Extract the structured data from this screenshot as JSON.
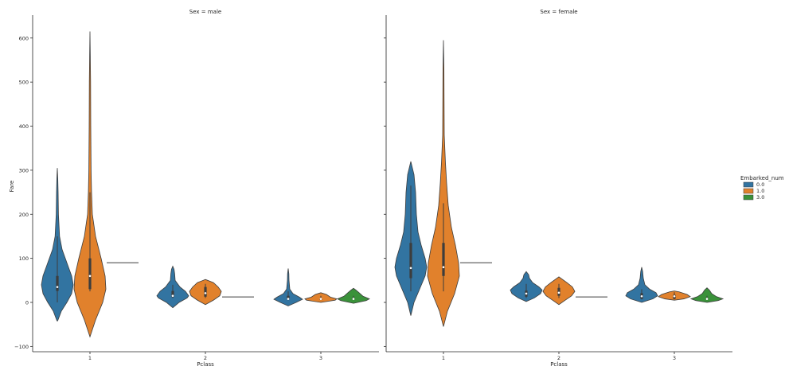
{
  "chart_data": [
    {
      "type": "violin",
      "title": "Sex = male",
      "xlabel": "Pclass",
      "ylabel": "Fare",
      "ylim": [
        -110,
        650
      ],
      "categories": [
        "1",
        "2",
        "3"
      ],
      "yticks": [
        "−100",
        "0",
        "100",
        "200",
        "300",
        "400",
        "500",
        "600"
      ],
      "violins": [
        {
          "pclass": "1",
          "embarked": "0.0",
          "profile": [
            [
              -42,
              0.02
            ],
            [
              -20,
              0.25
            ],
            [
              0,
              0.6
            ],
            [
              20,
              0.9
            ],
            [
              40,
              1.0
            ],
            [
              60,
              0.9
            ],
            [
              80,
              0.7
            ],
            [
              100,
              0.5
            ],
            [
              120,
              0.3
            ],
            [
              150,
              0.14
            ],
            [
              200,
              0.07
            ],
            [
              250,
              0.05
            ],
            [
              280,
              0.03
            ],
            [
              305,
              0.0
            ]
          ],
          "q1": 26,
          "median": 35,
          "q3": 60,
          "wlow": 0,
          "whigh": 150
        },
        {
          "pclass": "1",
          "embarked": "1.0",
          "profile": [
            [
              -78,
              0.0
            ],
            [
              -40,
              0.35
            ],
            [
              0,
              0.8
            ],
            [
              30,
              1.0
            ],
            [
              60,
              0.95
            ],
            [
              100,
              0.7
            ],
            [
              150,
              0.35
            ],
            [
              200,
              0.15
            ],
            [
              250,
              0.1
            ],
            [
              300,
              0.07
            ],
            [
              400,
              0.05
            ],
            [
              500,
              0.04
            ],
            [
              560,
              0.02
            ],
            [
              615,
              0.0
            ]
          ],
          "q1": 30,
          "median": 60,
          "q3": 100,
          "wlow": 25,
          "whigh": 250
        },
        {
          "pclass": "1",
          "embarked": "3.0",
          "flat": 90
        },
        {
          "pclass": "2",
          "embarked": "0.0",
          "profile": [
            [
              -12,
              0.0
            ],
            [
              0,
              0.4
            ],
            [
              10,
              0.9
            ],
            [
              15,
              1.0
            ],
            [
              25,
              0.8
            ],
            [
              35,
              0.45
            ],
            [
              50,
              0.15
            ],
            [
              65,
              0.12
            ],
            [
              75,
              0.08
            ],
            [
              82,
              0.0
            ]
          ],
          "q1": 12,
          "median": 15,
          "q3": 26,
          "wlow": 10,
          "whigh": 40
        },
        {
          "pclass": "2",
          "embarked": "1.0",
          "profile": [
            [
              -5,
              0.0
            ],
            [
              5,
              0.5
            ],
            [
              15,
              0.9
            ],
            [
              25,
              1.0
            ],
            [
              35,
              0.8
            ],
            [
              45,
              0.5
            ],
            [
              52,
              0.0
            ]
          ],
          "q1": 13,
          "median": 21,
          "q3": 35,
          "wlow": 10,
          "whigh": 42
        },
        {
          "pclass": "2",
          "embarked": "3.0",
          "flat": 12.4
        },
        {
          "pclass": "3",
          "embarked": "0.0",
          "profile": [
            [
              -8,
              0.0
            ],
            [
              0,
              0.5
            ],
            [
              7,
              0.9
            ],
            [
              12,
              0.7
            ],
            [
              20,
              0.3
            ],
            [
              30,
              0.1
            ],
            [
              50,
              0.05
            ],
            [
              65,
              0.04
            ],
            [
              77,
              0.0
            ]
          ],
          "q1": 7,
          "median": 8,
          "q3": 15,
          "wlow": 5,
          "whigh": 25
        },
        {
          "pclass": "3",
          "embarked": "1.0",
          "profile": [
            [
              0,
              0.0
            ],
            [
              5,
              0.9
            ],
            [
              8,
              1.0
            ],
            [
              12,
              0.6
            ],
            [
              18,
              0.35
            ],
            [
              22,
              0.0
            ]
          ],
          "q1": 7,
          "median": 7.8,
          "q3": 8,
          "wlow": 6,
          "whigh": 15
        },
        {
          "pclass": "3",
          "embarked": "3.0",
          "profile": [
            [
              -2,
              0.0
            ],
            [
              4,
              0.8
            ],
            [
              8,
              1.0
            ],
            [
              14,
              0.6
            ],
            [
              22,
              0.35
            ],
            [
              28,
              0.15
            ],
            [
              32,
              0.0
            ]
          ],
          "q1": 7.7,
          "median": 8,
          "q3": 10,
          "wlow": 7,
          "whigh": 15
        }
      ]
    },
    {
      "type": "violin",
      "title": "Sex = female",
      "xlabel": "Pclass",
      "ylabel": "",
      "ylim": [
        -110,
        650
      ],
      "categories": [
        "1",
        "2",
        "3"
      ],
      "violins": [
        {
          "pclass": "1",
          "embarked": "0.0",
          "profile": [
            [
              -30,
              0.0
            ],
            [
              0,
              0.2
            ],
            [
              30,
              0.55
            ],
            [
              60,
              0.9
            ],
            [
              80,
              1.0
            ],
            [
              100,
              0.9
            ],
            [
              130,
              0.65
            ],
            [
              160,
              0.45
            ],
            [
              200,
              0.35
            ],
            [
              250,
              0.3
            ],
            [
              290,
              0.2
            ],
            [
              320,
              0.0
            ]
          ],
          "q1": 55,
          "median": 78,
          "q3": 135,
          "wlow": 25,
          "whigh": 265
        },
        {
          "pclass": "1",
          "embarked": "1.0",
          "profile": [
            [
              -55,
              0.0
            ],
            [
              -20,
              0.25
            ],
            [
              20,
              0.7
            ],
            [
              60,
              1.0
            ],
            [
              90,
              0.95
            ],
            [
              130,
              0.75
            ],
            [
              170,
              0.5
            ],
            [
              220,
              0.3
            ],
            [
              270,
              0.2
            ],
            [
              320,
              0.12
            ],
            [
              380,
              0.05
            ],
            [
              450,
              0.04
            ],
            [
              530,
              0.03
            ],
            [
              595,
              0.0
            ]
          ],
          "q1": 60,
          "median": 80,
          "q3": 135,
          "wlow": 25,
          "whigh": 225
        },
        {
          "pclass": "1",
          "embarked": "3.0",
          "flat": 90
        },
        {
          "pclass": "2",
          "embarked": "0.0",
          "profile": [
            [
              2,
              0.0
            ],
            [
              10,
              0.5
            ],
            [
              20,
              0.9
            ],
            [
              28,
              1.0
            ],
            [
              35,
              0.8
            ],
            [
              45,
              0.4
            ],
            [
              55,
              0.2
            ],
            [
              63,
              0.15
            ],
            [
              70,
              0.0
            ]
          ],
          "q1": 13,
          "median": 20,
          "q3": 27,
          "wlow": 10,
          "whigh": 42
        },
        {
          "pclass": "2",
          "embarked": "1.0",
          "profile": [
            [
              -5,
              0.0
            ],
            [
              5,
              0.4
            ],
            [
              15,
              0.8
            ],
            [
              25,
              1.0
            ],
            [
              35,
              0.85
            ],
            [
              45,
              0.5
            ],
            [
              58,
              0.0
            ]
          ],
          "q1": 15,
          "median": 22,
          "q3": 33,
          "wlow": 10,
          "whigh": 42
        },
        {
          "pclass": "2",
          "embarked": "3.0",
          "flat": 12.4
        },
        {
          "pclass": "3",
          "embarked": "0.0",
          "profile": [
            [
              0,
              0.0
            ],
            [
              8,
              0.7
            ],
            [
              15,
              1.0
            ],
            [
              22,
              0.9
            ],
            [
              30,
              0.5
            ],
            [
              40,
              0.2
            ],
            [
              55,
              0.1
            ],
            [
              70,
              0.06
            ],
            [
              80,
              0.0
            ]
          ],
          "q1": 8,
          "median": 14,
          "q3": 21,
          "wlow": 7,
          "whigh": 30
        },
        {
          "pclass": "3",
          "embarked": "1.0",
          "profile": [
            [
              5,
              0.0
            ],
            [
              8,
              0.6
            ],
            [
              13,
              1.0
            ],
            [
              18,
              0.8
            ],
            [
              24,
              0.3
            ],
            [
              26,
              0.0
            ]
          ],
          "q1": 8,
          "median": 14,
          "q3": 17,
          "wlow": 7,
          "whigh": 23
        },
        {
          "pclass": "3",
          "embarked": "3.0",
          "profile": [
            [
              0,
              0.0
            ],
            [
              4,
              0.7
            ],
            [
              8,
              1.0
            ],
            [
              13,
              0.6
            ],
            [
              20,
              0.3
            ],
            [
              28,
              0.15
            ],
            [
              33,
              0.0
            ]
          ],
          "q1": 7.7,
          "median": 8,
          "q3": 10,
          "wlow": 7,
          "whigh": 15
        }
      ]
    }
  ],
  "legend": {
    "title": "Embarked_num",
    "placement": "right",
    "items": [
      {
        "label": "0.0",
        "color": "#3274a1"
      },
      {
        "label": "1.0",
        "color": "#e1812c"
      },
      {
        "label": "3.0",
        "color": "#3a923a"
      }
    ]
  }
}
